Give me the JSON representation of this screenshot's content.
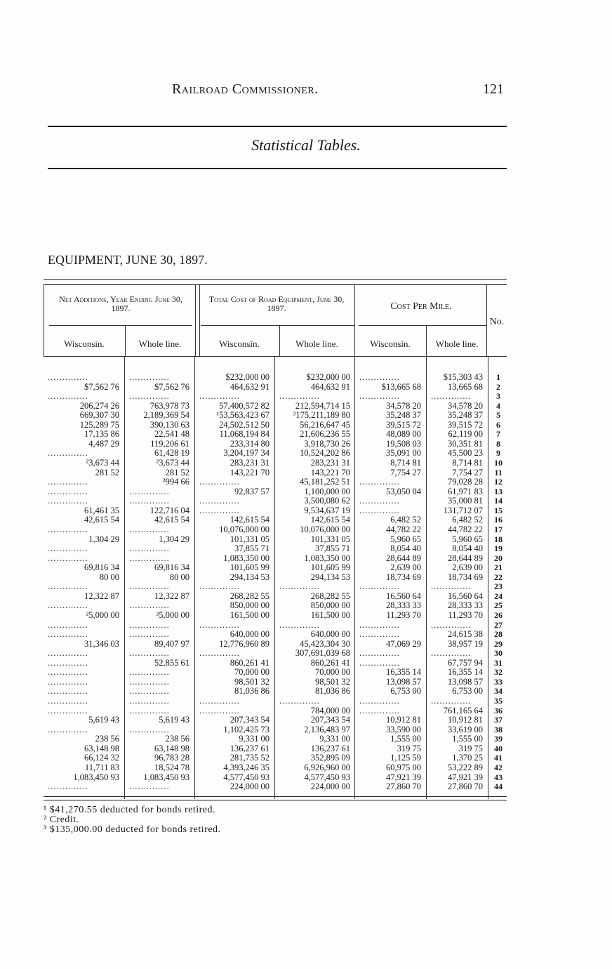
{
  "running_head": "Railroad Commissioner.",
  "page_number": "121",
  "subtitle": "Statistical Tables.",
  "table_title": "EQUIPMENT, JUNE 30, 1897.",
  "headers": {
    "group1": "Net Additions, Year Ending June 30, 1897.",
    "group2": "Total Cost of Road Equipment, June 30, 1897.",
    "group3": "Cost Per Mile.",
    "no": "No.",
    "sub": [
      "Wisconsin.",
      "Whole line.",
      "Wisconsin.",
      "Whole line.",
      "Wisconsin.",
      "Whole line."
    ]
  },
  "rows": [
    [
      "1",
      "D",
      "D",
      "$232,000 00",
      "$232,000 00",
      "D",
      "$15,303 43"
    ],
    [
      "2",
      "$7,562 76",
      "$7,562 76",
      "464,632 91",
      "464,632 91",
      "$13,665 68",
      "13,665 68"
    ],
    [
      "3",
      "D",
      "D",
      "D",
      "D",
      "D",
      "D"
    ],
    [
      "4",
      "206,274 26",
      "763,978 73",
      "57,400,572 82",
      "212,594,714 15",
      "34,578 20",
      "34,578 20"
    ],
    [
      "5",
      "669,307 30",
      "2,189,369 54",
      "¹53,563,423 67",
      "³175,211,189 80",
      "35,248 37",
      "35,248 37"
    ],
    [
      "6",
      "125,289 75",
      "390,130 63",
      "24,502,512 50",
      "56,216,647 45",
      "39,515 72",
      "39,515 72"
    ],
    [
      "7",
      "17,135 86",
      "22,541 48",
      "11,068,194 84",
      "21,606,236 55",
      "48,089 00",
      "62,119 00"
    ],
    [
      "8",
      "4,487 29",
      "119,206 61",
      "233,314 80",
      "3,918,730 26",
      "19,508 03",
      "30,351 81"
    ],
    [
      "9",
      "D",
      "61,428 19",
      "3,204,197 34",
      "10,524,202 86",
      "35,091 00",
      "45,500 23"
    ],
    [
      "10",
      "²3,673 44",
      "²3,673 44",
      "283,231 31",
      "283,231 31",
      "8,714 81",
      "8,714 81"
    ],
    [
      "11",
      "281 52",
      "281 52",
      "143,221 70",
      "143,221 70",
      "7,754 27",
      "7,754 27"
    ],
    [
      "12",
      "D",
      "²994 66",
      "D",
      "45,181,252 51",
      "D",
      "79,028 28"
    ],
    [
      "13",
      "D",
      "D",
      "92,837 57",
      "1,100,000 00",
      "53,050 04",
      "61,971 83"
    ],
    [
      "14",
      "D",
      "D",
      "D",
      "3,500,080 62",
      "D",
      "35,000 81"
    ],
    [
      "15",
      "61,461 35",
      "122,716 04",
      "D",
      "9,534,637 19",
      "D",
      "131,712 07"
    ],
    [
      "16",
      "42,615 54",
      "42,615 54",
      "142,615 54",
      "142,615 54",
      "6,482 52",
      "6,482 52"
    ],
    [
      "17",
      "D",
      "D",
      "10,076,000 00",
      "10,076,000 00",
      "44,782 22",
      "44,782 22"
    ],
    [
      "18",
      "1,304 29",
      "1,304 29",
      "101,331 05",
      "101,331 05",
      "5,960 65",
      "5,960 65"
    ],
    [
      "19",
      "D",
      "D",
      "37,855 71",
      "37,855 71",
      "8,054 40",
      "8,054 40"
    ],
    [
      "20",
      "D",
      "D",
      "1,083,350 00",
      "1,083,350 00",
      "28,644 89",
      "28,644 89"
    ],
    [
      "21",
      "69,816 34",
      "69,816 34",
      "101,605 99",
      "101,605 99",
      "2,639 00",
      "2,639 00"
    ],
    [
      "22",
      "80 00",
      "80 00",
      "294,134 53",
      "294,134 53",
      "18,734 69",
      "18,734 69"
    ],
    [
      "23",
      "D",
      "D",
      "D",
      "D",
      "D",
      "D"
    ],
    [
      "24",
      "12,322 87",
      "12,322 87",
      "268,282 55",
      "268,282 55",
      "16,560 64",
      "16,560 64"
    ],
    [
      "25",
      "D",
      "D",
      "850,000 00",
      "850,000 00",
      "28,333 33",
      "28,333 33"
    ],
    [
      "26",
      "²5,000 00",
      "²5,000 00",
      "161,500 00",
      "161,500 00",
      "11,293 70",
      "11,293 70"
    ],
    [
      "27",
      "D",
      "D",
      "D",
      "D",
      "D",
      "D"
    ],
    [
      "28",
      "D",
      "D",
      "640,000 00",
      "640,000 00",
      "D",
      "24,615 38"
    ],
    [
      "29",
      "31,346 03",
      "89,407 97",
      "12,776,960 89",
      "45,423,304 30",
      "47,069 29",
      "38,957 19"
    ],
    [
      "30",
      "D",
      "D",
      "D",
      "307,691,039 68",
      "D",
      "D"
    ],
    [
      "31",
      "D",
      "52,855 61",
      "860,261 41",
      "860,261 41",
      "D",
      "67,757 94"
    ],
    [
      "32",
      "D",
      "D",
      "70,000 00",
      "70,000 00",
      "16,355 14",
      "16,355 14"
    ],
    [
      "33",
      "D",
      "D",
      "98,501 32",
      "98,501 32",
      "13,098 57",
      "13,098 57"
    ],
    [
      "34",
      "D",
      "D",
      "81,036 86",
      "81,036 86",
      "6,753 00",
      "6,753 00"
    ],
    [
      "35",
      "D",
      "D",
      "D",
      "D",
      "D",
      "D"
    ],
    [
      "36",
      "D",
      "D",
      "D",
      "784,000 00",
      "D",
      "761,165 64"
    ],
    [
      "37",
      "5,619 43",
      "5,619 43",
      "207,343 54",
      "207,343 54",
      "10,912 81",
      "10,912 81"
    ],
    [
      "38",
      "D",
      "D",
      "1,102,425 73",
      "2,136,483 97",
      "33,590 00",
      "33,619 00"
    ],
    [
      "39",
      "238 56",
      "238 56",
      "9,331 00",
      "9,331 00",
      "1,555 00",
      "1,555 00"
    ],
    [
      "40",
      "63,148 98",
      "63,148 98",
      "136,237 61",
      "136,237 61",
      "319 75",
      "319 75"
    ],
    [
      "41",
      "66,124 32",
      "96,783 28",
      "281,735 52",
      "352,895 09",
      "1,125 59",
      "1,370 25"
    ],
    [
      "42",
      "11,711 83",
      "18,524 78",
      "4,393,246 35",
      "6,926,960 00",
      "60,975 00",
      "53,222 89"
    ],
    [
      "43",
      "1,083,450 93",
      "1,083,450 93",
      "4,577,450 93",
      "4,577,450 93",
      "47,921 39",
      "47,921 39"
    ],
    [
      "44",
      "D",
      "D",
      "224,000 00",
      "224,000 00",
      "27,860 70",
      "27,860 70"
    ]
  ],
  "footnotes": [
    "¹ $41,270.55 deducted for bonds retired.",
    "² Credit.",
    "³ $135,000.00 deducted for bonds retired."
  ]
}
